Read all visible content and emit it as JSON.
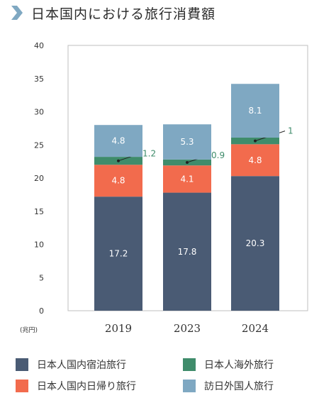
{
  "header": {
    "title": "日本国内における旅行消費額",
    "icon": "chevron-right-icon"
  },
  "chart_data": {
    "type": "bar",
    "stacked": true,
    "title": "日本国内における旅行消費額",
    "unit_label": "(兆円)",
    "categories": [
      "2019",
      "2023",
      "2024"
    ],
    "ylim": [
      0,
      40
    ],
    "yticks": [
      0,
      5,
      10,
      15,
      20,
      25,
      30,
      35,
      40
    ],
    "grid": false,
    "legend_position": "bottom",
    "series": [
      {
        "name": "日本人国内宿泊旅行",
        "color": "#4a5b74",
        "values": [
          17.2,
          17.8,
          20.3
        ],
        "labels": [
          "17.2",
          "17.8",
          "20.3"
        ]
      },
      {
        "name": "日本人国内日帰り旅行",
        "color": "#f26b4d",
        "values": [
          4.8,
          4.1,
          4.8
        ],
        "labels": [
          "4.8",
          "4.1",
          "4.8"
        ]
      },
      {
        "name": "日本人海外旅行",
        "color": "#3f8c6b",
        "values": [
          1.2,
          0.9,
          1
        ],
        "labels": [
          "1.2",
          "0.9",
          "1"
        ]
      },
      {
        "name": "訪日外国人旅行",
        "color": "#7fa8c2",
        "values": [
          4.8,
          5.3,
          8.1
        ],
        "labels": [
          "4.8",
          "5.3",
          "8.1"
        ]
      }
    ]
  },
  "legend": [
    {
      "label": "日本人国内宿泊旅行",
      "color": "#4a5b74"
    },
    {
      "label": "日本人海外旅行",
      "color": "#3f8c6b"
    },
    {
      "label": "日本人国内日帰り旅行",
      "color": "#f26b4d"
    },
    {
      "label": "訪日外国人旅行",
      "color": "#7fa8c2"
    }
  ]
}
